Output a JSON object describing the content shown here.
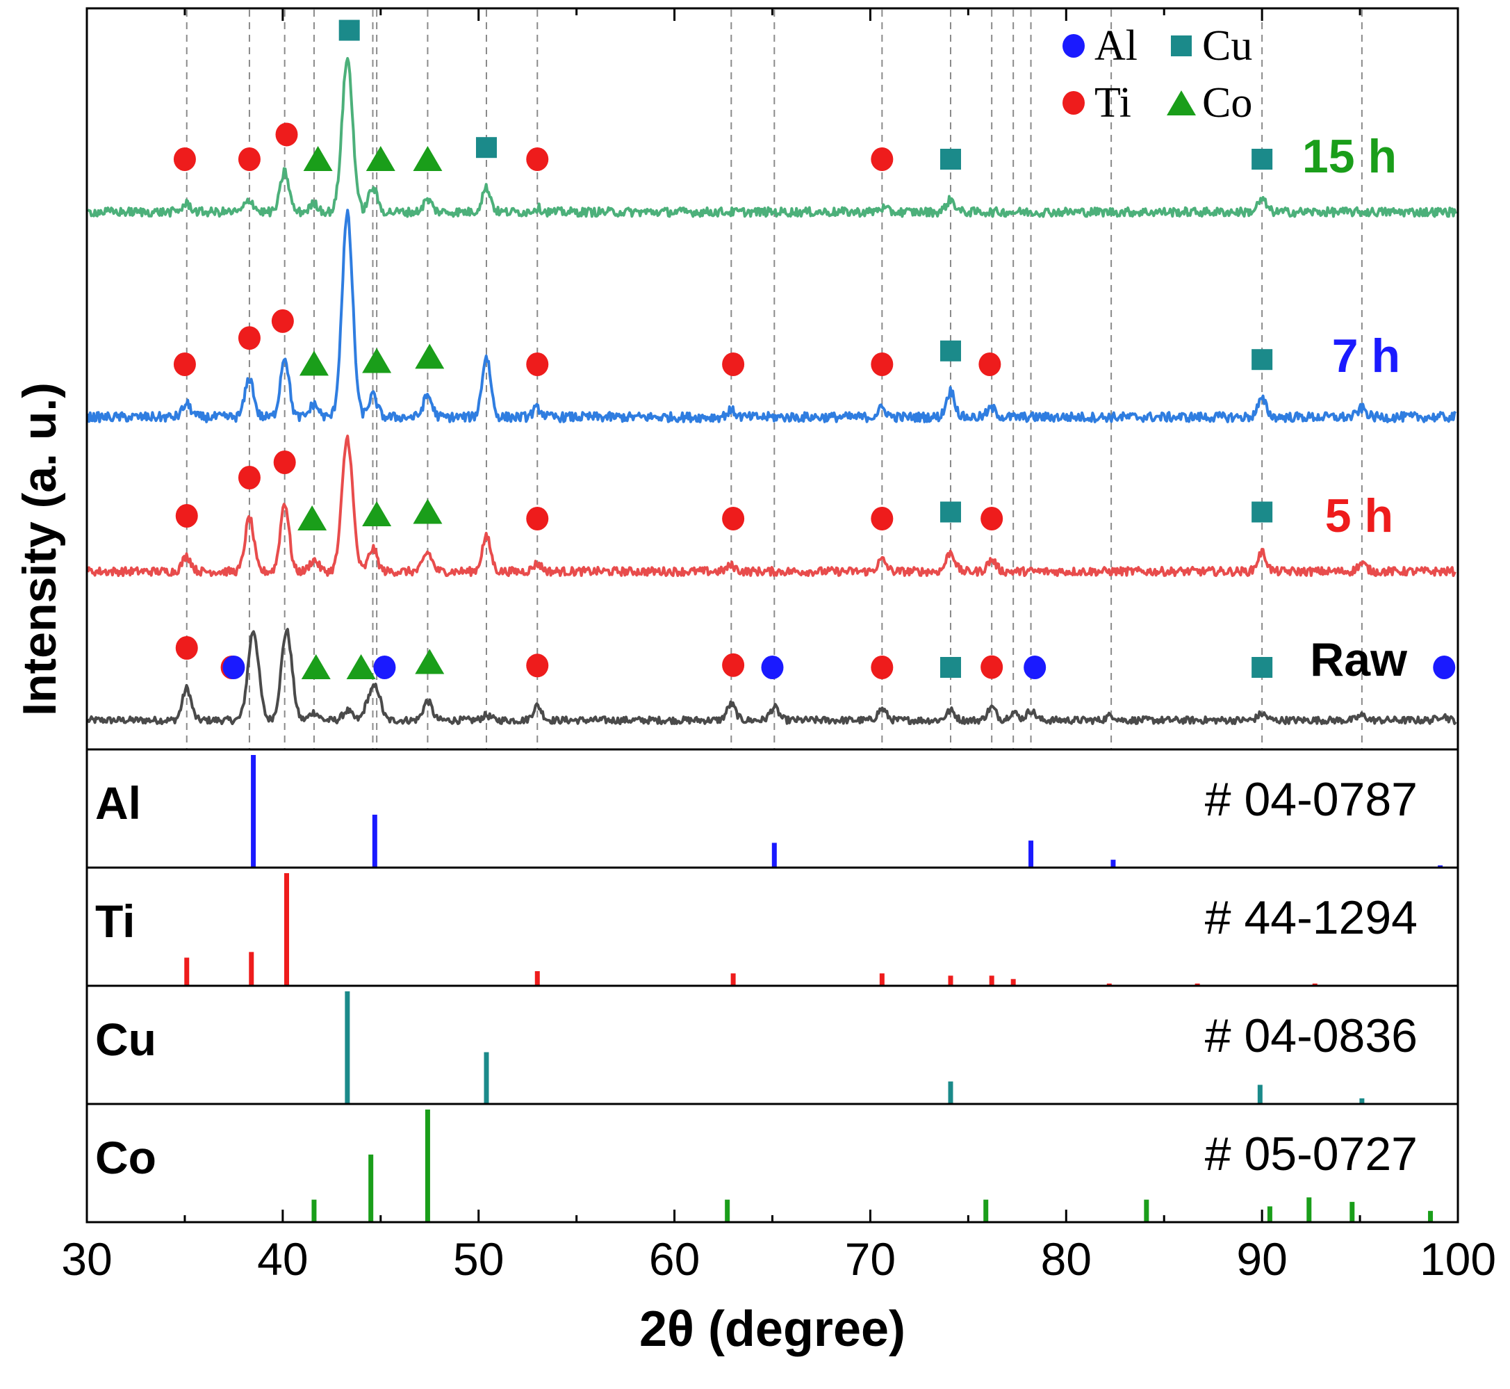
{
  "chart_data": {
    "type": "line",
    "title": "",
    "xlabel": "2θ (degree)",
    "ylabel": "Intensity (a. u.)",
    "xlim": [
      30,
      100
    ],
    "x_ticks": [
      "30",
      "40",
      "50",
      "60",
      "70",
      "80",
      "90",
      "100"
    ],
    "grid": false,
    "reference_lines": [
      35.1,
      38.3,
      40.1,
      41.6,
      44.6,
      44.8,
      47.4,
      50.4,
      53.0,
      62.9,
      65.1,
      70.6,
      74.1,
      76.2,
      77.3,
      78.2,
      82.3,
      90.0,
      95.1
    ],
    "legend": {
      "position": "top-right",
      "entries": [
        {
          "label": "Al",
          "marker": "circle",
          "color": "#1a1aff"
        },
        {
          "label": "Cu",
          "marker": "square",
          "color": "#1b8a8a"
        },
        {
          "label": "Ti",
          "marker": "circle",
          "color": "#ee1c1c"
        },
        {
          "label": "Co",
          "marker": "triangle",
          "color": "#1a9e1a"
        }
      ]
    },
    "series": [
      {
        "name": "Raw",
        "label": "Raw",
        "color": "#4a4a4a",
        "label_color": "#000000",
        "peaks": [
          [
            35.1,
            1.0
          ],
          [
            38.5,
            2.8
          ],
          [
            40.2,
            2.8
          ],
          [
            41.6,
            0.25
          ],
          [
            43.3,
            0.3
          ],
          [
            44.4,
            0.6
          ],
          [
            44.8,
            0.9
          ],
          [
            47.4,
            0.6
          ],
          [
            50.4,
            0.15
          ],
          [
            53.0,
            0.45
          ],
          [
            62.9,
            0.5
          ],
          [
            65.1,
            0.4
          ],
          [
            70.6,
            0.35
          ],
          [
            74.1,
            0.3
          ],
          [
            76.2,
            0.4
          ],
          [
            77.3,
            0.25
          ],
          [
            78.2,
            0.3
          ],
          [
            82.3,
            0.15
          ],
          [
            90.0,
            0.2
          ],
          [
            95.1,
            0.15
          ],
          [
            99.2,
            0.15
          ]
        ],
        "markers": [
          {
            "x": 35.1,
            "phase": "Ti"
          },
          {
            "x": 37.4,
            "phase": "Ti"
          },
          {
            "x": 37.5,
            "phase": "Al"
          },
          {
            "x": 41.7,
            "phase": "Co"
          },
          {
            "x": 44.0,
            "phase": "Co"
          },
          {
            "x": 45.2,
            "phase": "Al"
          },
          {
            "x": 47.5,
            "phase": "Co"
          },
          {
            "x": 53.0,
            "phase": "Ti"
          },
          {
            "x": 63.0,
            "phase": "Ti"
          },
          {
            "x": 65.0,
            "phase": "Al"
          },
          {
            "x": 70.6,
            "phase": "Ti"
          },
          {
            "x": 74.1,
            "phase": "Cu"
          },
          {
            "x": 76.2,
            "phase": "Ti"
          },
          {
            "x": 78.4,
            "phase": "Al"
          },
          {
            "x": 90.0,
            "phase": "Cu"
          },
          {
            "x": 99.3,
            "phase": "Al"
          }
        ]
      },
      {
        "name": "5 h",
        "label": "5 h",
        "color": "#e84c4c",
        "label_color": "#ee1c1c",
        "peaks": [
          [
            35.1,
            0.4
          ],
          [
            38.3,
            1.4
          ],
          [
            40.1,
            1.8
          ],
          [
            41.6,
            0.3
          ],
          [
            43.3,
            3.5
          ],
          [
            44.6,
            0.6
          ],
          [
            47.4,
            0.5
          ],
          [
            50.4,
            0.9
          ],
          [
            53.0,
            0.2
          ],
          [
            62.9,
            0.15
          ],
          [
            70.6,
            0.3
          ],
          [
            74.1,
            0.5
          ],
          [
            76.2,
            0.3
          ],
          [
            90.0,
            0.5
          ],
          [
            95.1,
            0.2
          ]
        ],
        "markers": [
          {
            "x": 35.1,
            "phase": "Ti"
          },
          {
            "x": 38.3,
            "phase": "Ti"
          },
          {
            "x": 40.1,
            "phase": "Ti"
          },
          {
            "x": 41.5,
            "phase": "Co"
          },
          {
            "x": 44.8,
            "phase": "Co"
          },
          {
            "x": 47.4,
            "phase": "Co"
          },
          {
            "x": 53.0,
            "phase": "Ti"
          },
          {
            "x": 63.0,
            "phase": "Ti"
          },
          {
            "x": 70.6,
            "phase": "Ti"
          },
          {
            "x": 74.1,
            "phase": "Cu"
          },
          {
            "x": 76.2,
            "phase": "Ti"
          },
          {
            "x": 90.0,
            "phase": "Cu"
          }
        ]
      },
      {
        "name": "7 h",
        "label": "7 h",
        "color": "#2f7de0",
        "label_color": "#1a1aff",
        "peaks": [
          [
            35.1,
            0.3
          ],
          [
            38.3,
            0.9
          ],
          [
            40.1,
            1.4
          ],
          [
            41.6,
            0.3
          ],
          [
            43.3,
            4.7
          ],
          [
            44.6,
            0.5
          ],
          [
            47.4,
            0.5
          ],
          [
            50.4,
            1.4
          ],
          [
            53.0,
            0.2
          ],
          [
            62.9,
            0.15
          ],
          [
            70.6,
            0.2
          ],
          [
            74.1,
            0.6
          ],
          [
            76.2,
            0.2
          ],
          [
            90.0,
            0.4
          ],
          [
            95.1,
            0.2
          ]
        ],
        "markers": [
          {
            "x": 35.0,
            "phase": "Ti"
          },
          {
            "x": 38.3,
            "phase": "Ti"
          },
          {
            "x": 40.0,
            "phase": "Ti"
          },
          {
            "x": 41.6,
            "phase": "Co"
          },
          {
            "x": 44.8,
            "phase": "Co"
          },
          {
            "x": 47.5,
            "phase": "Co"
          },
          {
            "x": 53.0,
            "phase": "Ti"
          },
          {
            "x": 63.0,
            "phase": "Ti"
          },
          {
            "x": 70.6,
            "phase": "Ti"
          },
          {
            "x": 74.1,
            "phase": "Cu"
          },
          {
            "x": 76.1,
            "phase": "Ti"
          },
          {
            "x": 90.0,
            "phase": "Cu"
          }
        ]
      },
      {
        "name": "15 h",
        "label": "15 h",
        "color": "#4cb07a",
        "label_color": "#1a9e1a",
        "peaks": [
          [
            35.1,
            0.2
          ],
          [
            38.3,
            0.3
          ],
          [
            40.1,
            1.0
          ],
          [
            41.6,
            0.2
          ],
          [
            43.3,
            3.8
          ],
          [
            44.6,
            0.6
          ],
          [
            47.4,
            0.3
          ],
          [
            50.4,
            0.6
          ],
          [
            53.0,
            0.1
          ],
          [
            70.6,
            0.1
          ],
          [
            74.1,
            0.3
          ],
          [
            90.0,
            0.3
          ]
        ],
        "markers": [
          {
            "x": 35.0,
            "phase": "Ti"
          },
          {
            "x": 38.3,
            "phase": "Ti"
          },
          {
            "x": 40.2,
            "phase": "Ti"
          },
          {
            "x": 41.8,
            "phase": "Co"
          },
          {
            "x": 43.4,
            "phase": "Cu"
          },
          {
            "x": 45.0,
            "phase": "Co"
          },
          {
            "x": 47.4,
            "phase": "Co"
          },
          {
            "x": 50.4,
            "phase": "Cu"
          },
          {
            "x": 53.0,
            "phase": "Ti"
          },
          {
            "x": 70.6,
            "phase": "Ti"
          },
          {
            "x": 74.1,
            "phase": "Cu"
          },
          {
            "x": 90.0,
            "phase": "Cu"
          }
        ]
      }
    ],
    "references": [
      {
        "phase": "Al",
        "card": "# 04-0787",
        "color": "#1a1aff",
        "lines": [
          [
            38.5,
            100
          ],
          [
            44.7,
            47
          ],
          [
            65.1,
            22
          ],
          [
            78.2,
            24
          ],
          [
            82.4,
            7
          ],
          [
            99.1,
            2
          ]
        ]
      },
      {
        "phase": "Ti",
        "card": "# 44-1294",
        "color": "#ee1c1c",
        "lines": [
          [
            35.1,
            25
          ],
          [
            38.4,
            30
          ],
          [
            40.2,
            100
          ],
          [
            53.0,
            13
          ],
          [
            63.0,
            11
          ],
          [
            70.6,
            11
          ],
          [
            74.1,
            9
          ],
          [
            76.2,
            9
          ],
          [
            77.3,
            6
          ],
          [
            82.2,
            2
          ],
          [
            86.7,
            2
          ],
          [
            92.7,
            2
          ]
        ]
      },
      {
        "phase": "Cu",
        "card": "# 04-0836",
        "color": "#1b8a8a",
        "lines": [
          [
            43.3,
            100
          ],
          [
            50.4,
            46
          ],
          [
            74.1,
            20
          ],
          [
            89.9,
            17
          ],
          [
            95.1,
            5
          ]
        ]
      },
      {
        "phase": "Co",
        "card": "# 05-0727",
        "color": "#1a9e1a",
        "lines": [
          [
            41.6,
            20
          ],
          [
            44.5,
            60
          ],
          [
            47.4,
            100
          ],
          [
            62.7,
            20
          ],
          [
            75.9,
            20
          ],
          [
            84.1,
            20
          ],
          [
            90.4,
            14
          ],
          [
            92.4,
            22
          ],
          [
            94.6,
            18
          ],
          [
            98.6,
            10
          ]
        ]
      }
    ]
  }
}
